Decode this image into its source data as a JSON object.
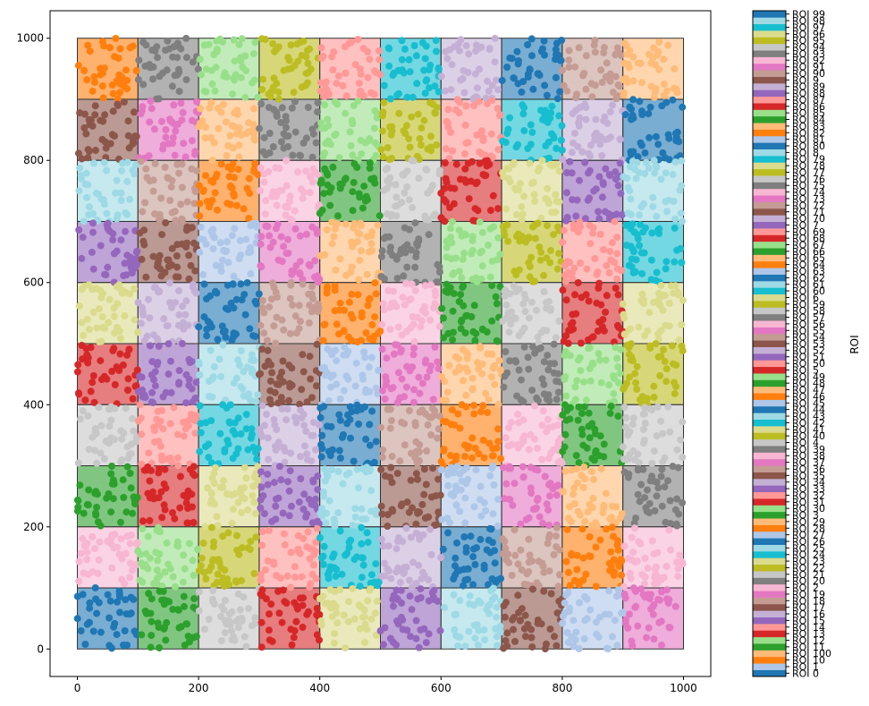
{
  "chart_data": {
    "type": "scatter",
    "title": "",
    "xlabel": "",
    "ylabel": "",
    "xlim": [
      -45,
      1045
    ],
    "ylim": [
      -45,
      1045
    ],
    "x_ticks": [
      0,
      200,
      400,
      600,
      800,
      1000
    ],
    "y_ticks": [
      0,
      200,
      400,
      600,
      800,
      1000
    ],
    "grid": "10x10 ROI cells, each 100 x 100 data units, outlined in dark grey",
    "colorbar": {
      "label": "ROI",
      "tick_labels": [
        "ROI 0",
        "ROI 1",
        "ROI 10",
        "ROI 100",
        "ROI 11",
        "ROI 12",
        "ROI 13",
        "ROI 14",
        "ROI 15",
        "ROI 16",
        "ROI 17",
        "ROI 18",
        "ROI 19",
        "ROI 2",
        "ROI 20",
        "ROI 21",
        "ROI 22",
        "ROI 23",
        "ROI 24",
        "ROI 25",
        "ROI 26",
        "ROI 27",
        "ROI 28",
        "ROI 29",
        "ROI 3",
        "ROI 30",
        "ROI 31",
        "ROI 32",
        "ROI 33",
        "ROI 34",
        "ROI 35",
        "ROI 36",
        "ROI 37",
        "ROI 38",
        "ROI 39",
        "ROI 4",
        "ROI 40",
        "ROI 41",
        "ROI 42",
        "ROI 43",
        "ROI 44",
        "ROI 45",
        "ROI 46",
        "ROI 47",
        "ROI 48",
        "ROI 49",
        "ROI 5",
        "ROI 50",
        "ROI 51",
        "ROI 52",
        "ROI 53",
        "ROI 54",
        "ROI 55",
        "ROI 56",
        "ROI 57",
        "ROI 58",
        "ROI 59",
        "ROI 6",
        "ROI 60",
        "ROI 61",
        "ROI 62",
        "ROI 63",
        "ROI 64",
        "ROI 65",
        "ROI 66",
        "ROI 67",
        "ROI 68",
        "ROI 69",
        "ROI 7",
        "ROI 70",
        "ROI 71",
        "ROI 72",
        "ROI 73",
        "ROI 74",
        "ROI 75",
        "ROI 76",
        "ROI 77",
        "ROI 78",
        "ROI 79",
        "ROI 8",
        "ROI 80",
        "ROI 81",
        "ROI 82",
        "ROI 83",
        "ROI 84",
        "ROI 85",
        "ROI 86",
        "ROI 87",
        "ROI 88",
        "ROI 89",
        "ROI 9",
        "ROI 90",
        "ROI 91",
        "ROI 92",
        "ROI 93",
        "ROI 94",
        "ROI 95",
        "ROI 96",
        "ROI 97",
        "ROI 98",
        "ROI 99"
      ],
      "palette": [
        "#1f77b4",
        "#aec7e8",
        "#ff7f0e",
        "#ffbb78",
        "#2ca02c",
        "#98df8a",
        "#d62728",
        "#ff9896",
        "#9467bd",
        "#c5b0d5",
        "#8c564b",
        "#c49c94",
        "#e377c2",
        "#f7b6d2",
        "#7f7f7f",
        "#c7c7c7",
        "#bcbd22",
        "#dbdb8d",
        "#17becf",
        "#9edae5"
      ]
    },
    "cells_top_to_bottom": [
      [
        "#ff7f0e",
        "#7f7f7f",
        "#98df8a",
        "#bcbd22",
        "#ff9896",
        "#17becf",
        "#c5b0d5",
        "#1f77b4",
        "#c49c94",
        "#ffbb78"
      ],
      [
        "#8c564b",
        "#e377c2",
        "#ffbb78",
        "#7f7f7f",
        "#98df8a",
        "#bcbd22",
        "#ff9896",
        "#17becf",
        "#c5b0d5",
        "#1f77b4"
      ],
      [
        "#9edae5",
        "#c49c94",
        "#ff7f0e",
        "#f7b6d2",
        "#2ca02c",
        "#c7c7c7",
        "#d62728",
        "#dbdb8d",
        "#9467bd",
        "#9edae5"
      ],
      [
        "#9467bd",
        "#8c564b",
        "#aec7e8",
        "#e377c2",
        "#ffbb78",
        "#7f7f7f",
        "#98df8a",
        "#bcbd22",
        "#ff9896",
        "#17becf"
      ],
      [
        "#dbdb8d",
        "#c5b0d5",
        "#1f77b4",
        "#c49c94",
        "#ff7f0e",
        "#f7b6d2",
        "#2ca02c",
        "#c7c7c7",
        "#d62728",
        "#dbdb8d"
      ],
      [
        "#d62728",
        "#9467bd",
        "#9edae5",
        "#8c564b",
        "#aec7e8",
        "#e377c2",
        "#ffbb78",
        "#7f7f7f",
        "#98df8a",
        "#bcbd22"
      ],
      [
        "#c7c7c7",
        "#ff9896",
        "#17becf",
        "#c5b0d5",
        "#1f77b4",
        "#c49c94",
        "#ff7f0e",
        "#f7b6d2",
        "#2ca02c",
        "#c7c7c7"
      ],
      [
        "#2ca02c",
        "#d62728",
        "#dbdb8d",
        "#9467bd",
        "#9edae5",
        "#8c564b",
        "#aec7e8",
        "#e377c2",
        "#ffbb78",
        "#7f7f7f"
      ],
      [
        "#f7b6d2",
        "#98df8a",
        "#bcbd22",
        "#ff9896",
        "#17becf",
        "#c5b0d5",
        "#1f77b4",
        "#c49c94",
        "#ff7f0e",
        "#f7b6d2"
      ],
      [
        "#1f77b4",
        "#2ca02c",
        "#c7c7c7",
        "#d62728",
        "#dbdb8d",
        "#9467bd",
        "#9edae5",
        "#8c564b",
        "#aec7e8",
        "#e377c2"
      ]
    ],
    "points_per_cell": 40,
    "point_scatter_description": "Each ROI cell is filled with ~40 random points of the cell's color; some points spill slightly past cell borders."
  }
}
